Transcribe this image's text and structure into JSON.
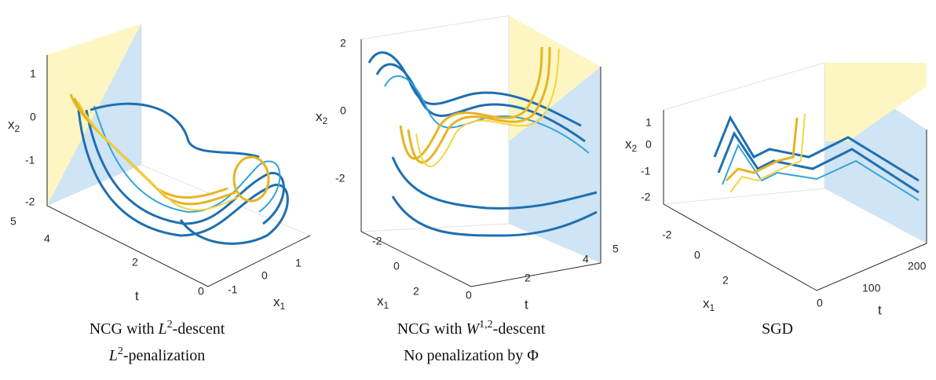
{
  "panels": [
    {
      "z_label": {
        "base": "x",
        "sub": "2"
      },
      "z_ticks": [
        "1",
        "0",
        "-1",
        "-2"
      ],
      "t_label": "t",
      "t_ticks": [
        "5",
        "4",
        "2",
        "0"
      ],
      "x1_label": {
        "base": "x",
        "sub": "1"
      },
      "x1_ticks": [
        "1",
        "0",
        "-1"
      ],
      "caption": [
        {
          "pre": "NCG with ",
          "var": "L",
          "sup": "2",
          "post": "-descent"
        },
        {
          "pre": "",
          "var": "L",
          "sup": "2",
          "post": "-penalization"
        }
      ]
    },
    {
      "z_label": {
        "base": "x",
        "sub": "2"
      },
      "z_ticks": [
        "2",
        "0",
        "-2"
      ],
      "t_label": "t",
      "t_ticks": [
        "0",
        "2",
        "4",
        "5"
      ],
      "x1_label": {
        "base": "x",
        "sub": "1"
      },
      "x1_ticks": [
        "-2",
        "0",
        "2"
      ],
      "caption": [
        {
          "pre": "NCG with ",
          "var": "W",
          "sup": "1,2",
          "post": "-descent"
        },
        {
          "text": "No penalization by Φ"
        }
      ]
    },
    {
      "z_label": {
        "base": "x",
        "sub": "2"
      },
      "z_ticks": [
        "1",
        "0",
        "-1",
        "-2"
      ],
      "t_label": "t",
      "t_ticks": [
        "0",
        "100",
        "200"
      ],
      "x1_label": {
        "base": "x",
        "sub": "1"
      },
      "x1_ticks": [
        "-2",
        "0",
        "2"
      ],
      "caption": [
        {
          "text": "SGD"
        }
      ]
    }
  ]
}
